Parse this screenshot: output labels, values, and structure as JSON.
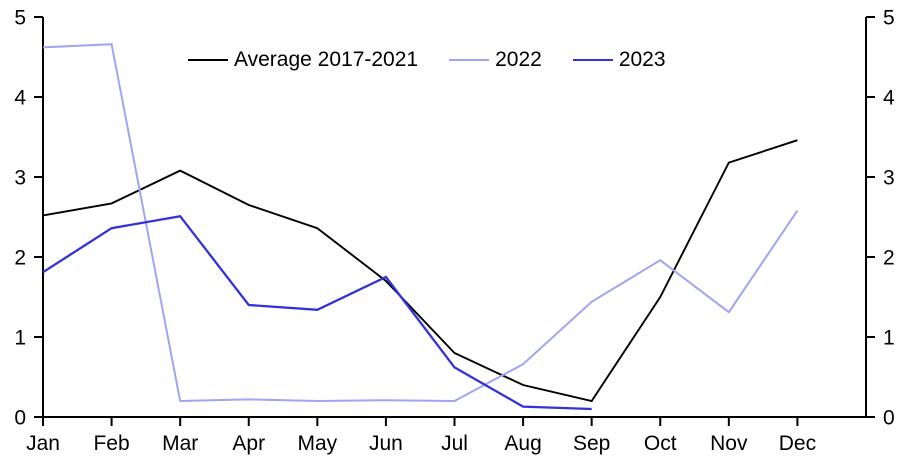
{
  "chart_data": {
    "type": "line",
    "title": "",
    "xlabel": "",
    "ylabel": "",
    "categories": [
      "Jan",
      "Feb",
      "Mar",
      "Apr",
      "May",
      "Jun",
      "Jul",
      "Aug",
      "Sep",
      "Oct",
      "Nov",
      "Dec"
    ],
    "series": [
      {
        "id": "average-2017-2021",
        "name": "Average 2017-2021",
        "color": "#000000",
        "values": [
          2.52,
          2.67,
          3.08,
          2.65,
          2.36,
          1.7,
          0.8,
          0.4,
          0.2,
          1.5,
          3.18,
          3.46
        ]
      },
      {
        "id": "year-2022",
        "name": "2022",
        "color": "#a0a4f1",
        "values": [
          4.62,
          4.66,
          0.2,
          0.22,
          0.2,
          0.21,
          0.2,
          0.66,
          1.44,
          1.96,
          1.31,
          2.58
        ]
      },
      {
        "id": "year-2023",
        "name": "2023",
        "color": "#3232d8",
        "values": [
          1.81,
          2.36,
          2.51,
          1.4,
          1.34,
          1.75,
          0.62,
          0.13,
          0.1,
          null,
          null,
          null
        ]
      }
    ],
    "ylim": [
      0,
      5
    ],
    "yticks_left": [
      "5",
      "4",
      "3",
      "2",
      "1",
      "0"
    ],
    "yticks_right": [
      "5",
      "4",
      "3",
      "2",
      "1",
      "0"
    ],
    "grid": false,
    "legend_position": "top-center",
    "axis_color": "#000000",
    "background_color": "#ffffff"
  }
}
